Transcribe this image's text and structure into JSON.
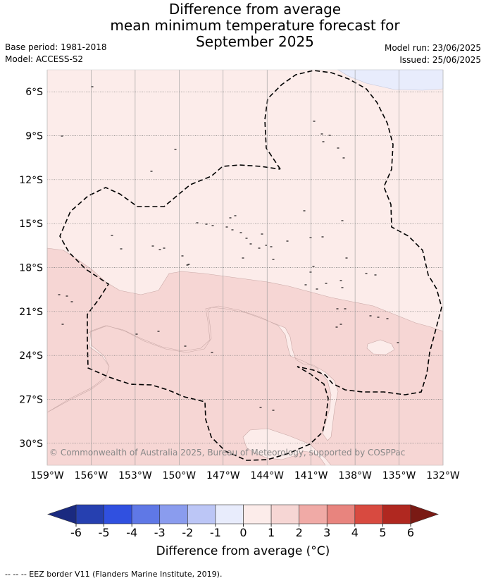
{
  "title": {
    "line1": "Difference from average",
    "line2": "mean minimum temperature forecast for",
    "line3": "September 2025"
  },
  "meta": {
    "base_period": "Base period: 1981-2018",
    "model": "Model: ACCESS-S2",
    "model_run": "Model run: 23/06/2025",
    "issued": "Issued: 25/06/2025"
  },
  "map": {
    "lon_range": [
      -159,
      -132
    ],
    "lat_range": [
      -31.5,
      -4.5
    ],
    "lat_ticks": [
      -6,
      -9,
      -12,
      -15,
      -18,
      -21,
      -24,
      -27,
      -30
    ],
    "lat_labels": [
      "6°S",
      "9°S",
      "12°S",
      "15°S",
      "18°S",
      "21°S",
      "24°S",
      "27°S",
      "30°S"
    ],
    "lon_ticks": [
      -159,
      -156,
      -153,
      -150,
      -147,
      -144,
      -141,
      -138,
      -135,
      -132
    ],
    "lon_labels": [
      "159°W",
      "156°W",
      "153°W",
      "150°W",
      "147°W",
      "144°W",
      "141°W",
      "138°W",
      "135°W",
      "132°W"
    ],
    "copyright": "© Commonwealth of Australia 2025, Bureau of Meteorology, supported by COSPPac",
    "background_color": "#fcecea"
  },
  "colorbar": {
    "labels": [
      "-6",
      "-5",
      "-4",
      "-3",
      "-2",
      "-1",
      "0",
      "1",
      "2",
      "3",
      "4",
      "5",
      "6"
    ],
    "colors": [
      "#2640b0",
      "#3050e0",
      "#5f78e6",
      "#8a9cee",
      "#bcc6f6",
      "#e8ecfc",
      "#fcecea",
      "#f6d6d4",
      "#f0aaa6",
      "#e8847e",
      "#d84a40",
      "#b02820"
    ],
    "low_extend_color": "#1a2a80",
    "high_extend_color": "#7a1a14",
    "title": "Difference from average (°C)"
  },
  "footer": "-- -- -- EEZ border V11 (Flanders Marine Institute, 2019)."
}
